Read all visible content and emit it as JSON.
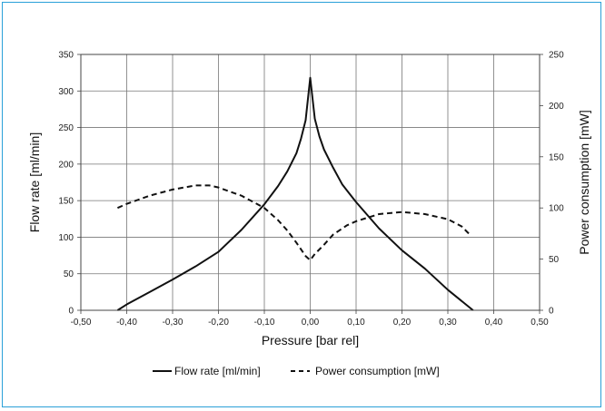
{
  "chart_data": {
    "type": "line",
    "title": "",
    "xlabel": "Pressure [bar rel]",
    "ylabel": "Flow rate [ml/min]",
    "y2label": "Power consumption [mW]",
    "xlim": [
      -0.5,
      0.5
    ],
    "ylim": [
      0,
      350
    ],
    "y2lim": [
      0,
      250
    ],
    "xticks": [
      "-0,50",
      "-0,40",
      "-0,30",
      "-0,20",
      "-0,10",
      "0,00",
      "0,10",
      "0,20",
      "0,30",
      "0,40",
      "0,50"
    ],
    "yticks": [
      "0",
      "50",
      "100",
      "150",
      "200",
      "250",
      "300",
      "350"
    ],
    "y2ticks": [
      "0",
      "50",
      "100",
      "150",
      "200",
      "250"
    ],
    "grid": true,
    "legend_position": "bottom",
    "colors": {
      "grid": "#777777",
      "line": "#111111",
      "frame": "#2aa0d8"
    },
    "series": [
      {
        "name": "Flow rate [ml/min]",
        "axis": "left",
        "style": "solid",
        "x": [
          -0.42,
          -0.4,
          -0.35,
          -0.3,
          -0.25,
          -0.2,
          -0.15,
          -0.1,
          -0.07,
          -0.05,
          -0.03,
          -0.02,
          -0.01,
          0.0,
          0.01,
          0.02,
          0.03,
          0.05,
          0.07,
          0.1,
          0.15,
          0.2,
          0.25,
          0.3,
          0.355
        ],
        "values": [
          0,
          8,
          25,
          42,
          60,
          80,
          110,
          145,
          170,
          190,
          215,
          235,
          260,
          318,
          262,
          238,
          220,
          195,
          172,
          148,
          112,
          82,
          57,
          28,
          0
        ]
      },
      {
        "name": "Power consumption [mW]",
        "axis": "right",
        "style": "dashed",
        "x": [
          -0.42,
          -0.4,
          -0.35,
          -0.3,
          -0.25,
          -0.22,
          -0.2,
          -0.15,
          -0.1,
          -0.07,
          -0.05,
          -0.03,
          -0.01,
          0.0,
          0.01,
          0.03,
          0.05,
          0.08,
          0.1,
          0.15,
          0.2,
          0.25,
          0.3,
          0.33,
          0.35
        ],
        "values": [
          100,
          104,
          112,
          118,
          122,
          122,
          120,
          112,
          100,
          88,
          78,
          66,
          53,
          49,
          55,
          64,
          74,
          83,
          87,
          94,
          96,
          94,
          89,
          82,
          73
        ]
      }
    ]
  }
}
